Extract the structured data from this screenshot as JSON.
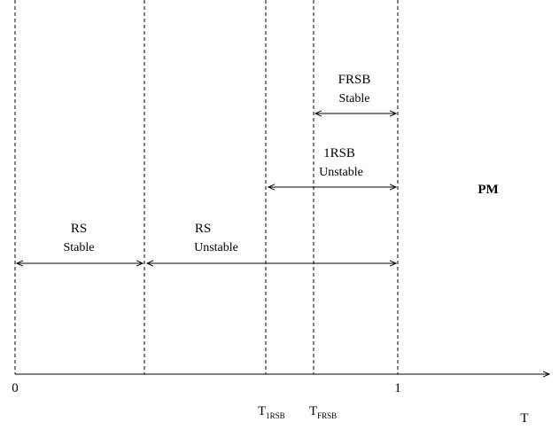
{
  "axis": {
    "origin_label": "0",
    "one_label": "1",
    "t_label": "T",
    "t1rsb": {
      "main": "T",
      "sub": "1RSB"
    },
    "tfrsb": {
      "main": "T",
      "sub": "FRSB"
    }
  },
  "regions": {
    "rs_stable": {
      "line1": "RS",
      "line2": "Stable"
    },
    "rs_unstable": {
      "line1": "RS",
      "line2": "Unstable"
    },
    "rsb1_unstable": {
      "line1": "1RSB",
      "line2": "Unstable"
    },
    "frsb_stable": {
      "line1": "FRSB",
      "line2": "Stable"
    },
    "pm": "PM"
  }
}
